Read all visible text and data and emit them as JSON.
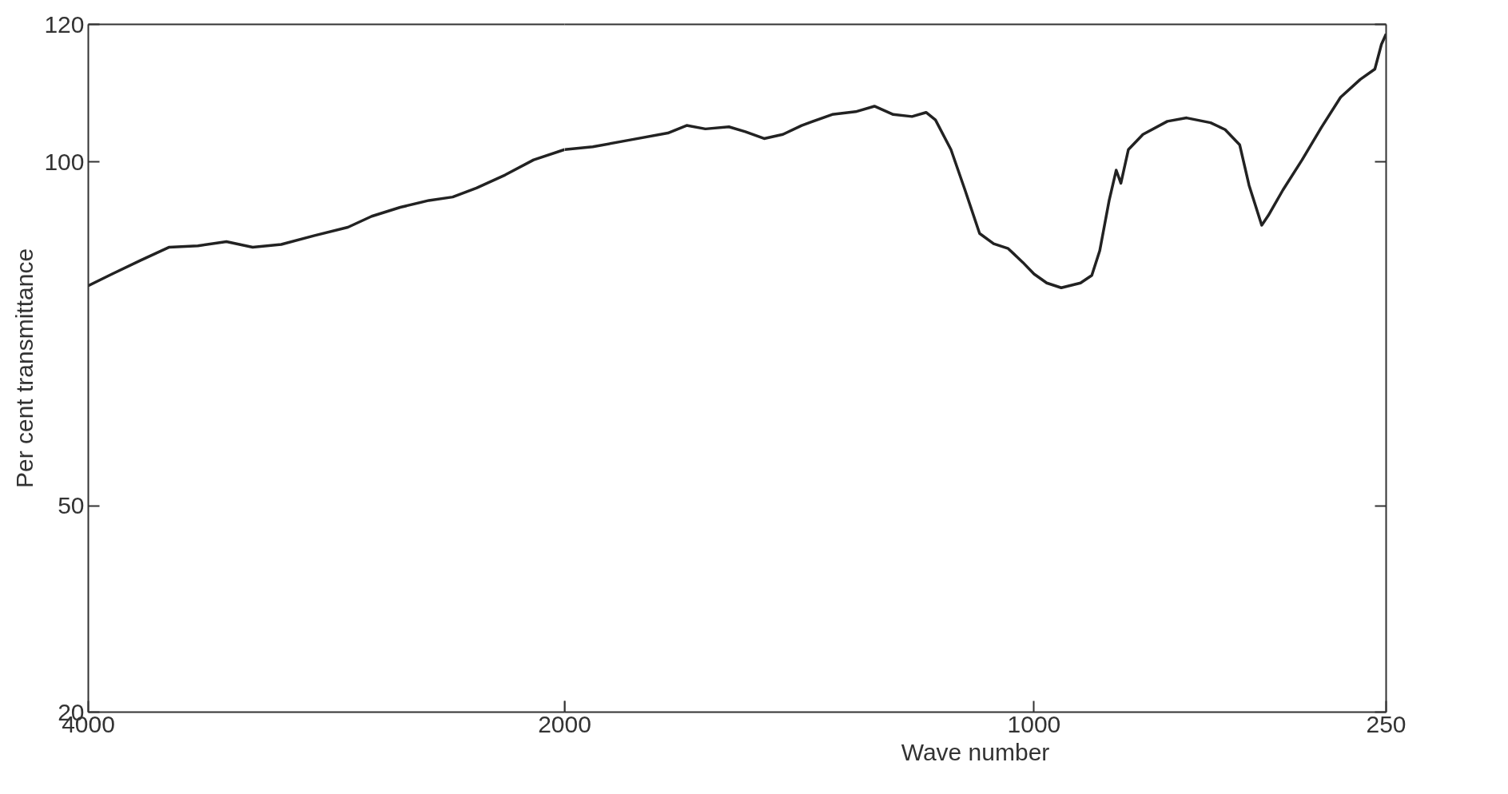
{
  "chart_data": [
    {
      "type": "line",
      "ylabel": "Per cent transmittance",
      "xlim": [
        4000,
        2000
      ],
      "xticks": [
        4000,
        2000
      ],
      "ylim": [
        20,
        120
      ],
      "yticks": [
        20,
        50,
        100,
        120
      ],
      "series": [
        {
          "color": "#222222",
          "x": [
            4000,
            3900,
            3780,
            3660,
            3540,
            3420,
            3310,
            3190,
            3050,
            2910,
            2810,
            2690,
            2570,
            2470,
            2370,
            2250,
            2130,
            2000
          ],
          "values": [
            82.0,
            83.7,
            85.7,
            87.6,
            87.8,
            88.4,
            87.6,
            88.0,
            89.3,
            90.5,
            92.1,
            93.4,
            94.4,
            94.9,
            96.2,
            98.1,
            100.3,
            101.8
          ]
        }
      ]
    },
    {
      "type": "line",
      "xlabel": "Wave number",
      "xlim": [
        2000,
        250
      ],
      "xticks": [
        {
          "value": 2000,
          "label": null
        },
        1000,
        250
      ],
      "ylim": [
        20,
        120
      ],
      "yticks": [
        20,
        50,
        100,
        120
      ],
      "tick_labels": "x",
      "series": [
        {
          "color": "#222222",
          "x": [
            2000,
            1940,
            1860,
            1780,
            1740,
            1700,
            1650,
            1615,
            1575,
            1535,
            1495,
            1430,
            1380,
            1340,
            1300,
            1260,
            1230,
            1210,
            1177,
            1147,
            1116,
            1086,
            1055,
            1024,
            1000,
            973,
            942,
            901,
            877,
            860,
            840,
            825,
            815,
            799,
            768,
            716,
            675,
            624,
            593,
            562,
            542,
            515,
            501,
            470,
            429,
            388,
            347,
            305,
            274,
            260,
            250
          ],
          "values": [
            101.8,
            102.2,
            103.2,
            104.2,
            105.3,
            104.8,
            105.1,
            104.4,
            103.4,
            104.0,
            105.3,
            106.9,
            107.3,
            108.1,
            106.9,
            106.6,
            107.2,
            106.1,
            101.8,
            95.9,
            89.6,
            88.1,
            87.4,
            85.4,
            83.7,
            82.4,
            81.7,
            82.4,
            83.5,
            87.1,
            94.4,
            98.8,
            96.9,
            101.8,
            104.0,
            105.9,
            106.4,
            105.7,
            104.7,
            102.5,
            96.6,
            90.8,
            92.2,
            95.9,
            100.3,
            105.0,
            109.4,
            112.0,
            113.5,
            117.1,
            118.6
          ]
        }
      ]
    }
  ]
}
